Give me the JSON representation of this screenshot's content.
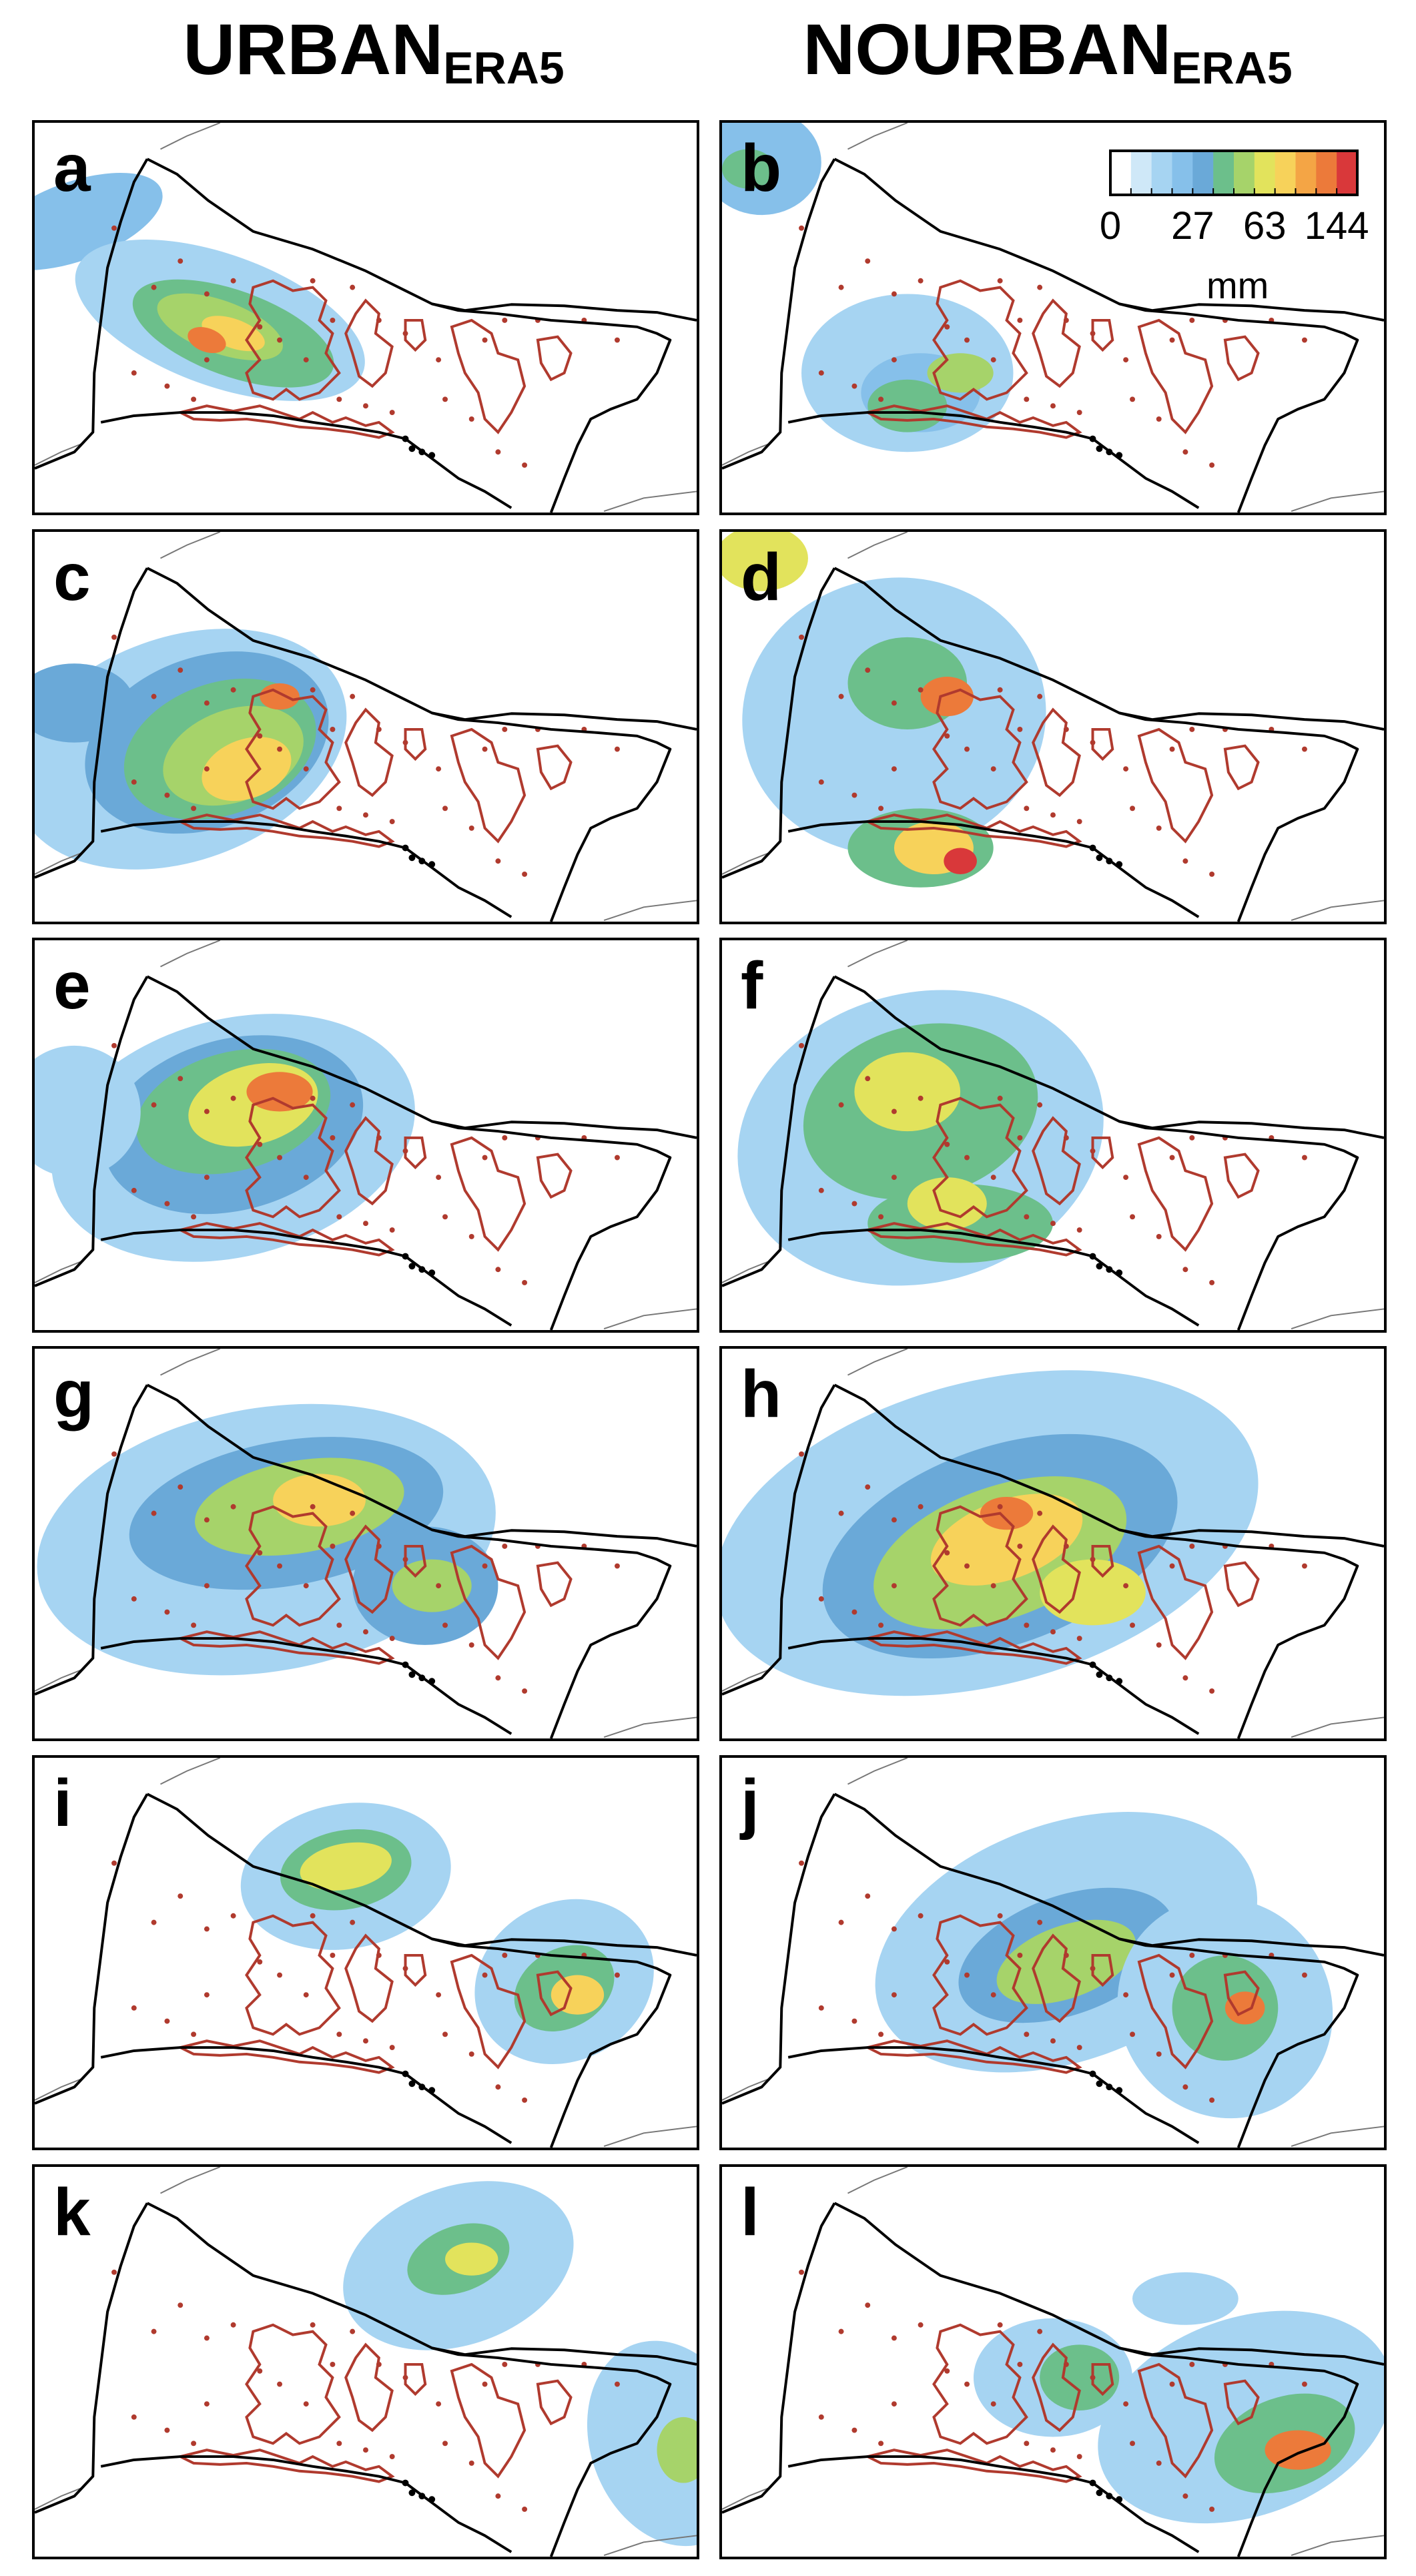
{
  "columns": [
    {
      "main": "URBAN",
      "sub": "ERA5"
    },
    {
      "main": "NOURBAN",
      "sub": "ERA5"
    }
  ],
  "panels": [
    {
      "label": "a",
      "column": "URBAN",
      "scenario": 0
    },
    {
      "label": "b",
      "column": "NOURBAN",
      "scenario": 1
    },
    {
      "label": "c",
      "column": "URBAN",
      "scenario": 2
    },
    {
      "label": "d",
      "column": "NOURBAN",
      "scenario": 3
    },
    {
      "label": "e",
      "column": "URBAN",
      "scenario": 4
    },
    {
      "label": "f",
      "column": "NOURBAN",
      "scenario": 5
    },
    {
      "label": "g",
      "column": "URBAN",
      "scenario": 6
    },
    {
      "label": "h",
      "column": "NOURBAN",
      "scenario": 7
    },
    {
      "label": "i",
      "column": "URBAN",
      "scenario": 8
    },
    {
      "label": "j",
      "column": "NOURBAN",
      "scenario": 9
    },
    {
      "label": "k",
      "column": "URBAN",
      "scenario": 10
    },
    {
      "label": "l",
      "column": "NOURBAN",
      "scenario": 11
    }
  ],
  "legend": {
    "tick_labels": [
      "0",
      "27",
      "63",
      "144"
    ],
    "unit": "mm",
    "colors": [
      "#ffffff",
      "#cfe8f8",
      "#a6d4f2",
      "#86c0ea",
      "#6aa9d8",
      "#6cbf8b",
      "#a6d36a",
      "#e2e35c",
      "#f7d25a",
      "#f4a545",
      "#ec7a3a",
      "#d9383a"
    ]
  },
  "colors": {
    "urban_outline": "#b03a2e",
    "boundary": "#000000",
    "coast": "#777777"
  }
}
